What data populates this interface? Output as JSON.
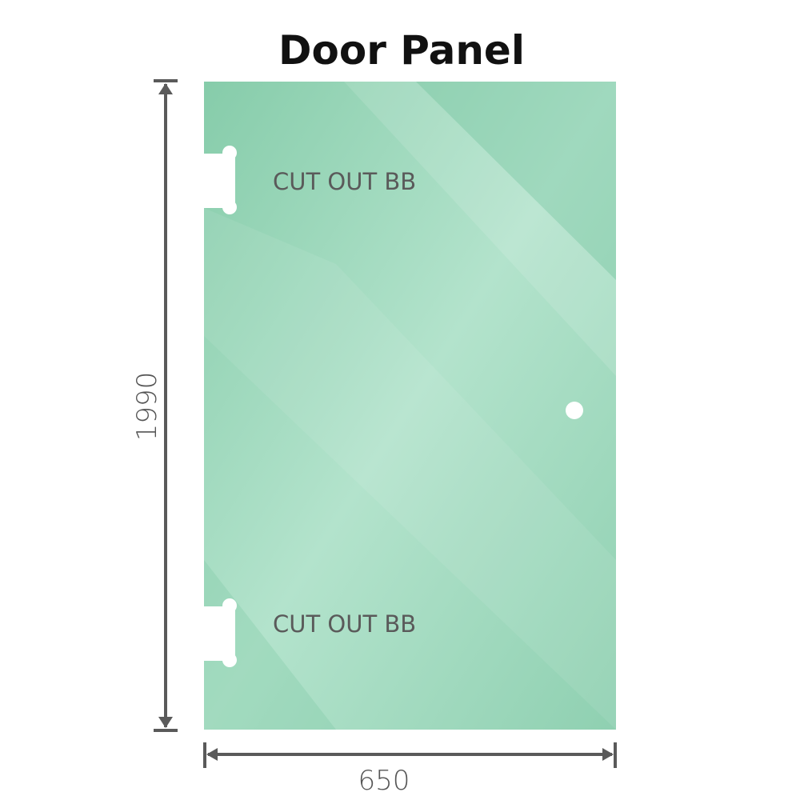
{
  "title": "Door Panel",
  "cutouts": [
    {
      "label": "CUT OUT BB"
    },
    {
      "label": "CUT OUT BB"
    }
  ],
  "dimensions": {
    "height": "1990",
    "width": "650"
  },
  "colors": {
    "glass": "#8fd0b0",
    "dimension_line": "#5a5a5a",
    "title": "#111111"
  }
}
